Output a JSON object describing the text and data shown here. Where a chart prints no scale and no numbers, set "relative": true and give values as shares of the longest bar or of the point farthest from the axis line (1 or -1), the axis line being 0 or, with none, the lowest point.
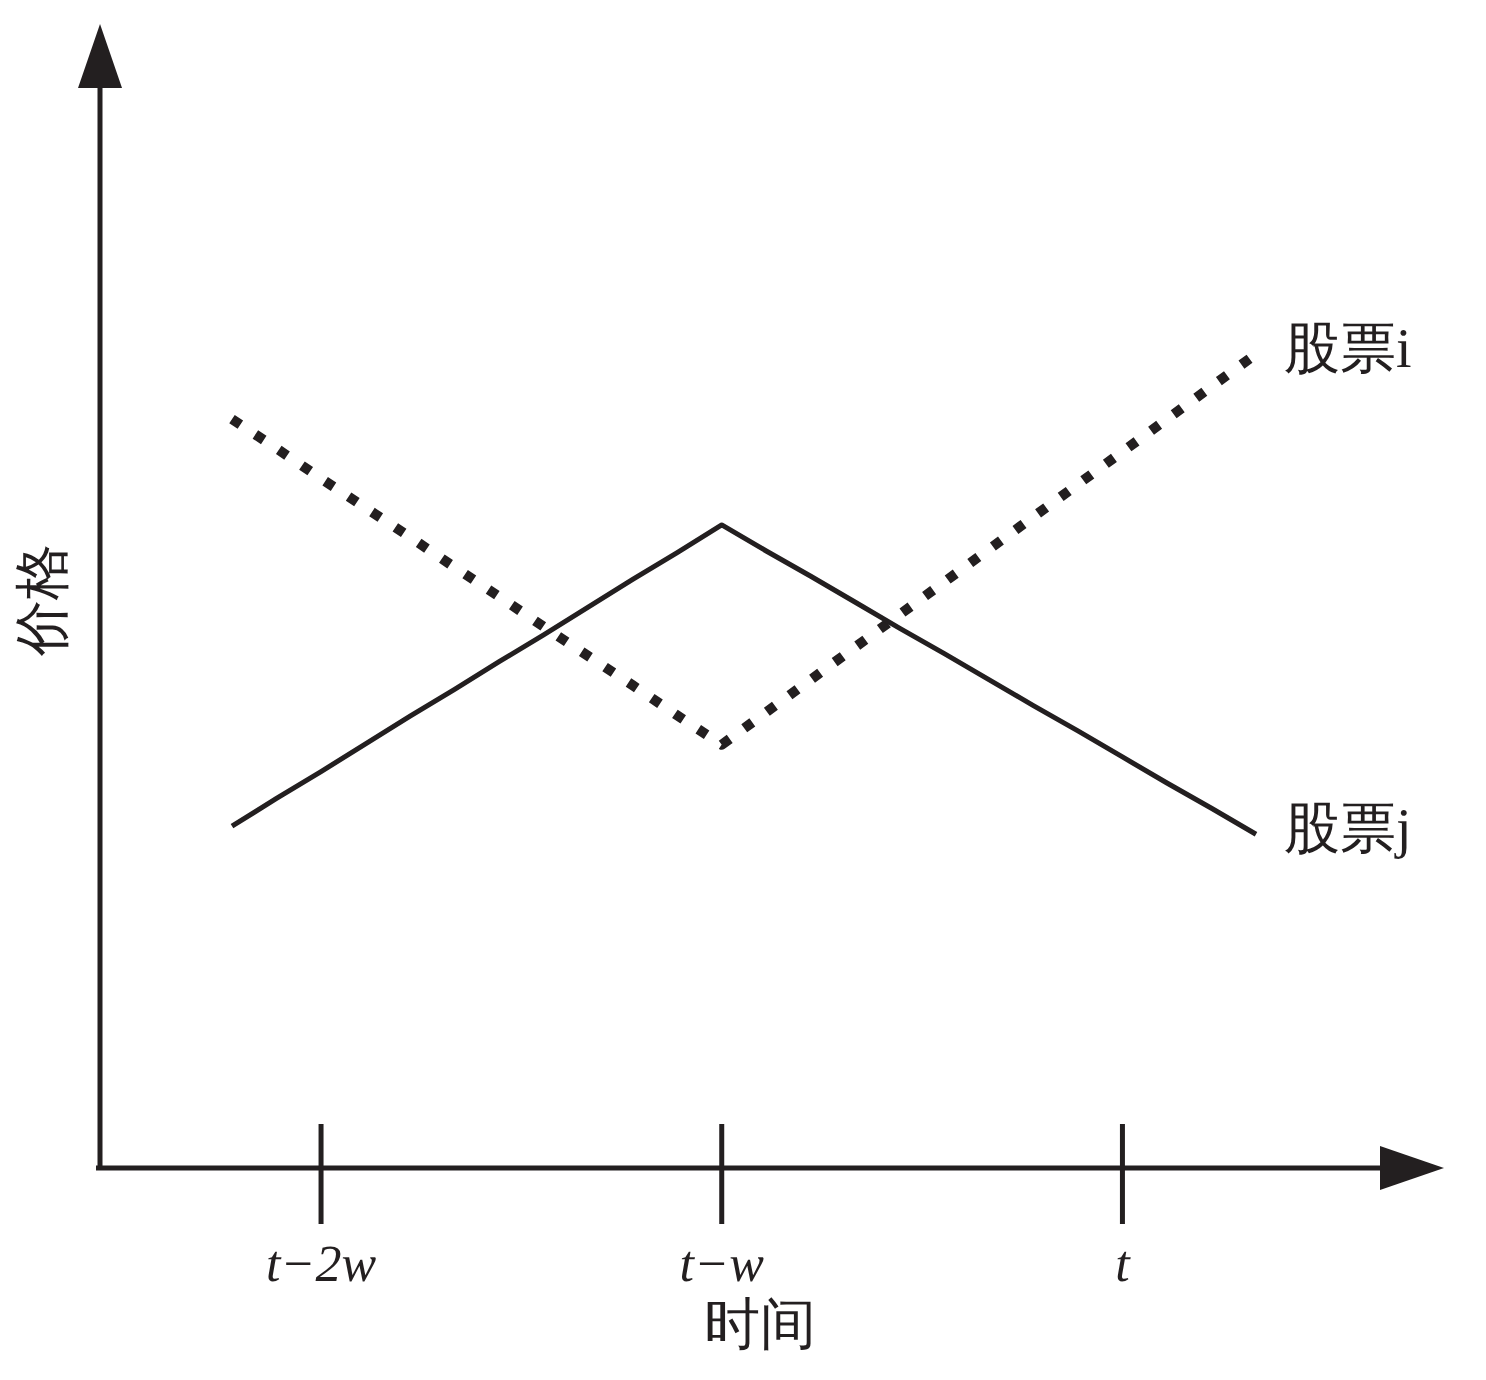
{
  "chart_data": {
    "type": "line",
    "relative": true,
    "xlabel": "时间",
    "ylabel": "价格",
    "categories": [
      null,
      null,
      "t−2w",
      null,
      null,
      null,
      null,
      null,
      null,
      null,
      null,
      "t−w",
      null,
      null,
      null,
      null,
      null,
      null,
      null,
      null,
      "t",
      null,
      null,
      null
    ],
    "series": [
      {
        "name": "股票i",
        "color": "#231f20",
        "line_style": "dotted",
        "values": [
          0.92,
          0.884,
          0.847,
          0.811,
          0.775,
          0.738,
          0.702,
          0.665,
          0.629,
          0.593,
          0.556,
          0.52,
          0.56,
          0.6,
          0.64,
          0.68,
          0.72,
          0.76,
          0.8,
          0.84,
          0.88,
          0.92,
          0.96,
          1
        ]
      },
      {
        "name": "股票j",
        "color": "#231f20",
        "line_style": "solid",
        "values": [
          0.42,
          0.454,
          0.487,
          0.521,
          0.555,
          0.588,
          0.622,
          0.655,
          0.689,
          0.723,
          0.756,
          0.79,
          0.758,
          0.727,
          0.695,
          0.663,
          0.632,
          0.6,
          0.568,
          0.537,
          0.505,
          0.473,
          0.442,
          0.41
        ]
      }
    ]
  }
}
